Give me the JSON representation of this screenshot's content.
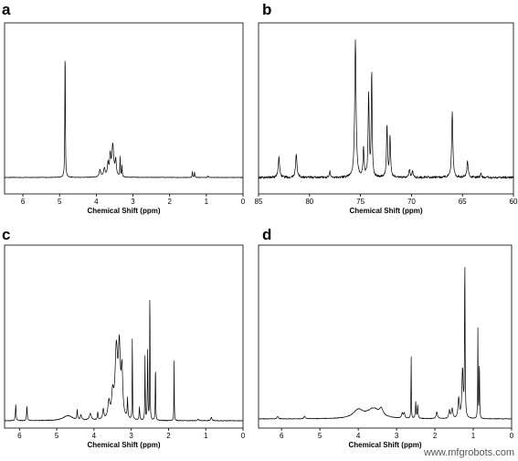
{
  "watermark": "www.mfgrobots.com",
  "chart_data": [
    {
      "panel": "a",
      "type": "line",
      "xlabel": "Chemical Shift (ppm)",
      "xlim": [
        6.5,
        0
      ],
      "xticks": [
        "6",
        "5",
        "4",
        "3",
        "2",
        "1",
        "0"
      ],
      "xtick_values": [
        6,
        5,
        4,
        3,
        2,
        1,
        0
      ],
      "ylim": [
        0,
        1
      ],
      "series": [
        {
          "noise": 0.002,
          "peaks": [
            [
              4.85,
              0.95,
              0.008
            ],
            [
              3.9,
              0.05,
              0.025
            ],
            [
              3.78,
              0.06,
              0.025
            ],
            [
              3.68,
              0.09,
              0.02
            ],
            [
              3.62,
              0.14,
              0.02
            ],
            [
              3.55,
              0.22,
              0.03
            ],
            [
              3.47,
              0.11,
              0.02
            ],
            [
              3.35,
              0.14,
              0.008
            ],
            [
              3.3,
              0.08,
              0.008
            ],
            [
              1.38,
              0.04,
              0.008
            ],
            [
              1.32,
              0.04,
              0.008
            ],
            [
              0.95,
              0.01,
              0.01
            ]
          ]
        }
      ]
    },
    {
      "panel": "b",
      "type": "line",
      "xlabel": "Chemical Shift (ppm)",
      "xlim": [
        85,
        60
      ],
      "xticks": [
        "85",
        "80",
        "75",
        "70",
        "65",
        "60"
      ],
      "xtick_values": [
        85,
        80,
        75,
        70,
        65,
        60
      ],
      "ylim": [
        0,
        1
      ],
      "series": [
        {
          "noise": 0.008,
          "peaks": [
            [
              83.0,
              0.14,
              0.08
            ],
            [
              81.3,
              0.16,
              0.08
            ],
            [
              78.0,
              0.04,
              0.06
            ],
            [
              75.5,
              0.95,
              0.08
            ],
            [
              74.7,
              0.2,
              0.06
            ],
            [
              74.2,
              0.58,
              0.06
            ],
            [
              73.9,
              0.75,
              0.05
            ],
            [
              72.4,
              0.36,
              0.06
            ],
            [
              72.1,
              0.28,
              0.06
            ],
            [
              70.2,
              0.06,
              0.06
            ],
            [
              69.9,
              0.05,
              0.06
            ],
            [
              66.0,
              0.46,
              0.07
            ],
            [
              64.5,
              0.11,
              0.08
            ],
            [
              63.2,
              0.03,
              0.06
            ]
          ]
        }
      ]
    },
    {
      "panel": "c",
      "type": "line",
      "xlabel": "Chemical Shift (ppm)",
      "xlim": [
        6.4,
        0
      ],
      "xticks": [
        "6",
        "5",
        "4",
        "3",
        "2",
        "1",
        "0"
      ],
      "xtick_values": [
        6,
        5,
        4,
        3,
        2,
        1,
        0
      ],
      "ylim": [
        0,
        1
      ],
      "series": [
        {
          "noise": 0.002,
          "peaks": [
            [
              6.1,
              0.1,
              0.01
            ],
            [
              5.8,
              0.09,
              0.01
            ],
            [
              4.7,
              0.03,
              0.15
            ],
            [
              4.45,
              0.06,
              0.01
            ],
            [
              4.35,
              0.03,
              0.02
            ],
            [
              4.1,
              0.04,
              0.03
            ],
            [
              3.9,
              0.05,
              0.01
            ],
            [
              3.75,
              0.06,
              0.02
            ],
            [
              3.6,
              0.1,
              0.03
            ],
            [
              3.5,
              0.14,
              0.03
            ],
            [
              3.4,
              0.42,
              0.04
            ],
            [
              3.32,
              0.4,
              0.03
            ],
            [
              3.25,
              0.28,
              0.025
            ],
            [
              3.1,
              0.12,
              0.01
            ],
            [
              2.97,
              0.6,
              0.005
            ],
            [
              2.78,
              0.08,
              0.01
            ],
            [
              2.63,
              0.4,
              0.006
            ],
            [
              2.56,
              0.42,
              0.008
            ],
            [
              2.5,
              1.0,
              0.005
            ],
            [
              2.35,
              0.38,
              0.006
            ],
            [
              1.85,
              0.38,
              0.005
            ],
            [
              1.2,
              0.01,
              0.02
            ],
            [
              0.85,
              0.02,
              0.02
            ]
          ]
        }
      ]
    },
    {
      "panel": "d",
      "type": "line",
      "xlabel": "Chemical Shift (ppm)",
      "xlim": [
        6.6,
        0
      ],
      "xticks": [
        "6",
        "5",
        "4",
        "3",
        "2",
        "1",
        "0"
      ],
      "xtick_values": [
        6,
        5,
        4,
        3,
        2,
        1,
        0
      ],
      "ylim": [
        0,
        1
      ],
      "series": [
        {
          "noise": 0.002,
          "peaks": [
            [
              6.1,
              0.015,
              0.02
            ],
            [
              5.4,
              0.015,
              0.02
            ],
            [
              4.0,
              0.05,
              0.15
            ],
            [
              3.6,
              0.06,
              0.2
            ],
            [
              3.4,
              0.04,
              0.05
            ],
            [
              2.85,
              0.03,
              0.02
            ],
            [
              2.8,
              0.03,
              0.02
            ],
            [
              2.62,
              0.44,
              0.005
            ],
            [
              2.5,
              0.1,
              0.01
            ],
            [
              2.45,
              0.08,
              0.01
            ],
            [
              1.95,
              0.04,
              0.02
            ],
            [
              1.62,
              0.05,
              0.02
            ],
            [
              1.55,
              0.06,
              0.02
            ],
            [
              1.38,
              0.12,
              0.02
            ],
            [
              1.28,
              0.3,
              0.02
            ],
            [
              1.22,
              1.0,
              0.008
            ],
            [
              0.88,
              0.55,
              0.006
            ],
            [
              0.84,
              0.4,
              0.006
            ]
          ]
        }
      ]
    }
  ]
}
